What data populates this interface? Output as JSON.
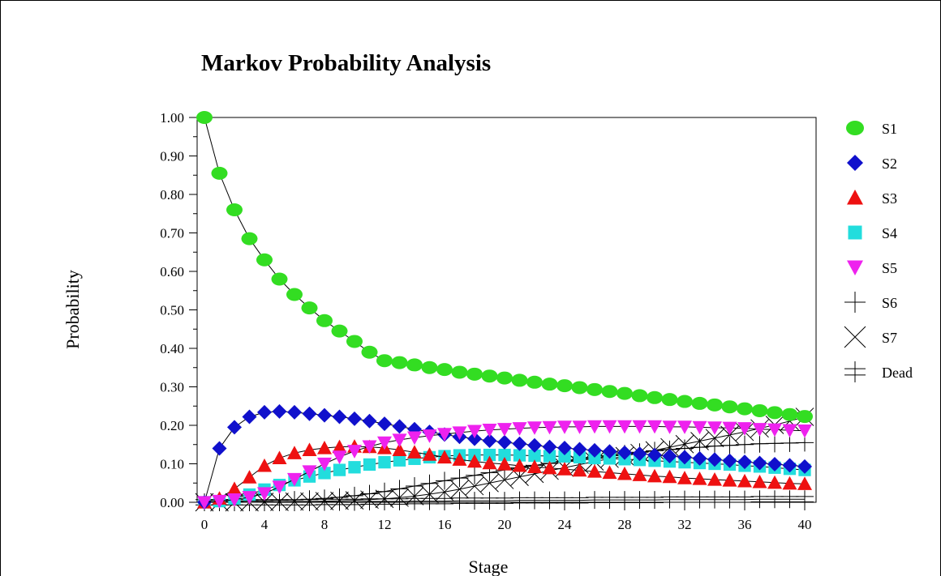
{
  "chart_data": {
    "type": "line",
    "title": "Markov Probability Analysis",
    "xlabel": "Stage",
    "ylabel": "Probability",
    "xlim": [
      0,
      40
    ],
    "ylim": [
      0,
      1
    ],
    "x_ticks": [
      "0",
      "4",
      "8",
      "12",
      "16",
      "20",
      "24",
      "28",
      "32",
      "36",
      "40"
    ],
    "y_ticks": [
      "0.00",
      "0.10",
      "0.20",
      "0.30",
      "0.40",
      "0.50",
      "0.60",
      "0.70",
      "0.80",
      "0.90",
      "1.00"
    ],
    "grid": false,
    "legend_position": "right",
    "x": [
      0,
      1,
      2,
      3,
      4,
      5,
      6,
      7,
      8,
      9,
      10,
      11,
      12,
      13,
      14,
      15,
      16,
      17,
      18,
      19,
      20,
      21,
      22,
      23,
      24,
      25,
      26,
      27,
      28,
      29,
      30,
      31,
      32,
      33,
      34,
      35,
      36,
      37,
      38,
      39,
      40
    ],
    "series": [
      {
        "name": "S1",
        "marker": "circle",
        "color": "#33dd22",
        "values": [
          1.0,
          0.855,
          0.76,
          0.685,
          0.63,
          0.58,
          0.54,
          0.505,
          0.472,
          0.445,
          0.418,
          0.39,
          0.368,
          0.363,
          0.357,
          0.35,
          0.345,
          0.338,
          0.333,
          0.328,
          0.323,
          0.317,
          0.312,
          0.307,
          0.303,
          0.298,
          0.293,
          0.288,
          0.283,
          0.277,
          0.272,
          0.267,
          0.262,
          0.257,
          0.253,
          0.248,
          0.243,
          0.238,
          0.233,
          0.228,
          0.223
        ]
      },
      {
        "name": "S2",
        "marker": "diamond",
        "color": "#1010cc",
        "values": [
          0.0,
          0.14,
          0.195,
          0.222,
          0.234,
          0.236,
          0.234,
          0.23,
          0.226,
          0.222,
          0.217,
          0.211,
          0.204,
          0.197,
          0.19,
          0.183,
          0.176,
          0.17,
          0.165,
          0.16,
          0.156,
          0.152,
          0.148,
          0.144,
          0.141,
          0.138,
          0.135,
          0.132,
          0.129,
          0.126,
          0.123,
          0.12,
          0.117,
          0.114,
          0.111,
          0.108,
          0.105,
          0.102,
          0.099,
          0.096,
          0.093
        ]
      },
      {
        "name": "S3",
        "marker": "triangle-up",
        "color": "#ee1111",
        "values": [
          0.0,
          0.01,
          0.035,
          0.065,
          0.095,
          0.115,
          0.128,
          0.136,
          0.141,
          0.144,
          0.145,
          0.144,
          0.141,
          0.136,
          0.13,
          0.124,
          0.117,
          0.111,
          0.106,
          0.102,
          0.099,
          0.095,
          0.092,
          0.089,
          0.086,
          0.083,
          0.08,
          0.077,
          0.074,
          0.071,
          0.068,
          0.066,
          0.063,
          0.061,
          0.059,
          0.057,
          0.055,
          0.053,
          0.051,
          0.049,
          0.048
        ]
      },
      {
        "name": "S4",
        "marker": "square",
        "color": "#22dddd",
        "values": [
          0.0,
          0.003,
          0.01,
          0.02,
          0.033,
          0.045,
          0.057,
          0.067,
          0.076,
          0.084,
          0.091,
          0.098,
          0.104,
          0.109,
          0.113,
          0.117,
          0.12,
          0.122,
          0.123,
          0.123,
          0.123,
          0.122,
          0.121,
          0.12,
          0.119,
          0.117,
          0.115,
          0.114,
          0.112,
          0.11,
          0.108,
          0.106,
          0.104,
          0.102,
          0.1,
          0.098,
          0.095,
          0.093,
          0.09,
          0.087,
          0.084
        ]
      },
      {
        "name": "S5",
        "marker": "triangle-down",
        "color": "#ee22ee",
        "values": [
          0.0,
          0.003,
          0.007,
          0.013,
          0.023,
          0.04,
          0.06,
          0.08,
          0.1,
          0.118,
          0.133,
          0.145,
          0.155,
          0.162,
          0.168,
          0.173,
          0.177,
          0.181,
          0.185,
          0.188,
          0.19,
          0.192,
          0.194,
          0.195,
          0.196,
          0.196,
          0.197,
          0.197,
          0.197,
          0.197,
          0.197,
          0.196,
          0.196,
          0.195,
          0.194,
          0.193,
          0.192,
          0.19,
          0.189,
          0.187,
          0.186
        ]
      },
      {
        "name": "S6",
        "marker": "plus",
        "color": "#000000",
        "values": [
          0.0,
          0.001,
          0.002,
          0.003,
          0.004,
          0.005,
          0.006,
          0.008,
          0.01,
          0.013,
          0.017,
          0.022,
          0.028,
          0.035,
          0.042,
          0.049,
          0.056,
          0.063,
          0.07,
          0.077,
          0.084,
          0.09,
          0.096,
          0.101,
          0.106,
          0.111,
          0.116,
          0.121,
          0.126,
          0.13,
          0.134,
          0.137,
          0.14,
          0.143,
          0.146,
          0.148,
          0.15,
          0.152,
          0.153,
          0.154,
          0.155
        ]
      },
      {
        "name": "S7",
        "marker": "cross",
        "color": "#000000",
        "values": [
          0.0,
          0.0,
          0.0,
          0.0,
          0.001,
          0.001,
          0.002,
          0.002,
          0.003,
          0.004,
          0.005,
          0.007,
          0.009,
          0.012,
          0.016,
          0.021,
          0.027,
          0.034,
          0.042,
          0.05,
          0.058,
          0.066,
          0.074,
          0.082,
          0.09,
          0.098,
          0.106,
          0.113,
          0.12,
          0.128,
          0.135,
          0.143,
          0.151,
          0.159,
          0.167,
          0.175,
          0.183,
          0.192,
          0.201,
          0.211,
          0.222
        ]
      },
      {
        "name": "Dead",
        "marker": "double-plus",
        "color": "#000000",
        "values": [
          0.0,
          0.0,
          0.0,
          0.0,
          0.0,
          0.0,
          0.0,
          0.0,
          0.001,
          0.001,
          0.001,
          0.002,
          0.002,
          0.002,
          0.003,
          0.003,
          0.003,
          0.004,
          0.004,
          0.004,
          0.004,
          0.005,
          0.005,
          0.005,
          0.005,
          0.005,
          0.006,
          0.006,
          0.006,
          0.006,
          0.006,
          0.007,
          0.007,
          0.007,
          0.007,
          0.007,
          0.007,
          0.008,
          0.008,
          0.008,
          0.008
        ]
      }
    ]
  }
}
